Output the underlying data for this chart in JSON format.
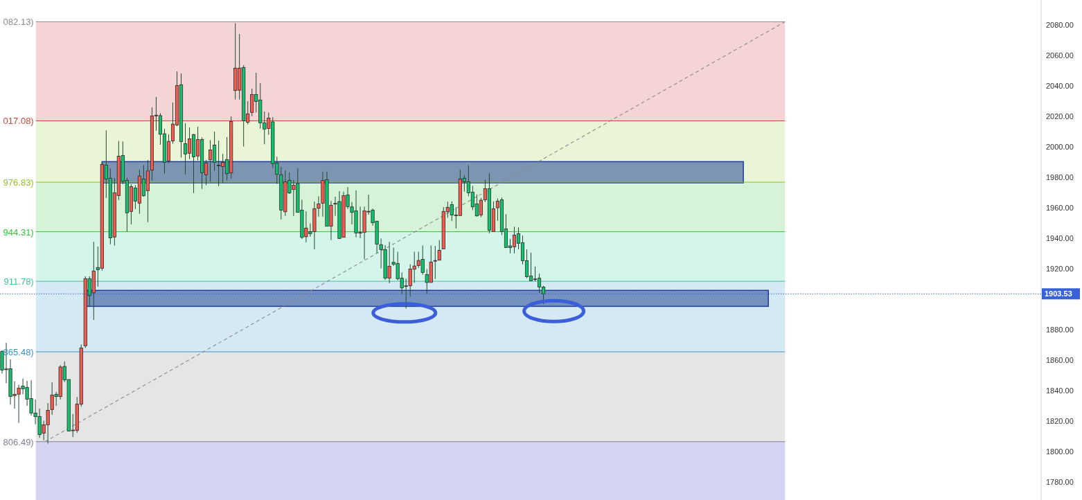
{
  "chart_data": {
    "type": "candlestick",
    "categories": [
      null,
      null,
      null,
      null,
      null,
      null,
      null,
      null,
      null,
      null,
      null,
      null,
      null,
      null,
      null,
      null,
      null,
      null,
      null,
      null,
      null,
      null,
      null,
      null,
      null,
      null,
      null,
      null,
      null,
      null,
      null,
      null,
      null,
      null,
      null,
      null,
      null,
      null,
      null,
      null,
      null,
      null,
      null,
      null,
      null,
      null,
      null,
      null,
      null,
      null,
      null,
      null,
      null,
      null,
      null,
      null,
      null,
      null,
      null,
      null,
      null,
      null,
      null,
      null,
      null,
      null,
      null,
      null,
      null,
      null,
      null,
      null,
      null,
      null,
      null,
      null,
      null,
      null,
      null,
      null,
      null,
      null,
      null,
      null,
      null,
      null,
      null,
      null,
      null,
      null,
      null,
      null,
      null,
      null,
      null,
      null,
      null,
      null,
      null,
      null,
      null,
      null,
      null,
      null,
      null,
      null,
      null,
      null,
      null,
      null,
      null,
      null,
      null,
      null,
      null,
      null,
      null,
      null,
      null,
      null,
      null,
      null,
      null,
      null,
      null,
      null,
      null,
      null,
      null,
      null,
      null,
      null,
      null,
      null,
      null,
      null,
      null,
      null,
      null,
      null,
      null,
      null,
      null,
      null,
      null,
      null,
      null,
      null,
      null,
      null,
      null,
      null,
      null,
      null,
      null,
      null,
      null,
      null,
      null,
      null,
      null,
      null,
      null,
      null,
      null,
      null,
      null,
      null,
      null,
      null,
      null,
      null,
      null,
      null,
      null,
      null,
      null,
      null,
      null,
      null,
      null,
      null,
      null,
      null,
      null,
      null,
      null,
      null,
      null,
      null,
      null,
      null,
      null,
      null,
      null,
      null,
      null,
      null,
      null,
      null,
      null,
      null,
      null,
      null,
      null,
      null,
      null,
      null,
      null,
      null,
      null,
      null,
      null,
      null,
      null,
      null,
      null,
      null,
      null,
      null,
      null,
      null,
      null,
      null,
      null,
      null,
      null,
      null,
      null,
      null,
      null,
      null,
      null,
      null,
      null,
      null,
      null,
      null,
      null,
      null,
      null,
      null,
      null,
      null,
      null,
      null,
      null,
      null,
      null,
      null
    ],
    "ohlc": [
      [
        1865.8,
        1866.5,
        1851.2,
        1853.5
      ],
      [
        1854.2,
        1871.4,
        1844.8,
        1854.2
      ],
      [
        1854.4,
        1860.5,
        1830.8,
        1836.2
      ],
      [
        1836.7,
        1846.1,
        1828.2,
        1837.6
      ],
      [
        1837.6,
        1843.8,
        1818.8,
        1841.7
      ],
      [
        1843.0,
        1847.9,
        1837.6,
        1841.2
      ],
      [
        1842.1,
        1846.4,
        1830.0,
        1834.4
      ],
      [
        1834.8,
        1846.8,
        1823.6,
        1825.3
      ],
      [
        1825.3,
        1834.2,
        1817.9,
        1822.9
      ],
      [
        1823.0,
        1828.2,
        1809.0,
        1811.1
      ],
      [
        1812.0,
        1820.3,
        1807.4,
        1817.6
      ],
      [
        1817.6,
        1831.8,
        1805.2,
        1827.1
      ],
      [
        1827.6,
        1845.5,
        1824.1,
        1837.1
      ],
      [
        1837.6,
        1839.2,
        1830.0,
        1836.1
      ],
      [
        1836.1,
        1856.7,
        1834.2,
        1855.5
      ],
      [
        1855.9,
        1859.1,
        1845.6,
        1847.1
      ],
      [
        1847.3,
        1847.3,
        1813.3,
        1813.5
      ],
      [
        1814.1,
        1824.7,
        1809.5,
        1814.1
      ],
      [
        1813.8,
        1835.8,
        1812.3,
        1831.2
      ],
      [
        1831.1,
        1870.3,
        1829.5,
        1868.0
      ],
      [
        1869.4,
        1915.0,
        1868.0,
        1913.5
      ],
      [
        1913.5,
        1915.0,
        1895.6,
        1902.4
      ],
      [
        1904.2,
        1937.7,
        1886.4,
        1918.5
      ],
      [
        1920.8,
        1934.5,
        1908.2,
        1919.4
      ],
      [
        1920.3,
        1990.3,
        1918.8,
        1988.5
      ],
      [
        1988.0,
        2010.8,
        1966.5,
        1978.9
      ],
      [
        1979.4,
        1985.8,
        1936.1,
        1940.3
      ],
      [
        1940.8,
        1979.4,
        1935.2,
        1969.9
      ],
      [
        1968.0,
        2003.9,
        1965.1,
        1993.9
      ],
      [
        1994.4,
        2003.5,
        1975.5,
        1977.4
      ],
      [
        1978.0,
        1979.7,
        1944.4,
        1956.7
      ],
      [
        1957.6,
        1975.5,
        1949.2,
        1973.9
      ],
      [
        1973.0,
        1974.9,
        1959.2,
        1964.4
      ],
      [
        1963.0,
        1985.0,
        1956.1,
        1980.8
      ],
      [
        1978.9,
        1988.0,
        1967.3,
        1967.9
      ],
      [
        1971.2,
        1991.4,
        1950.6,
        1984.2
      ],
      [
        1984.7,
        2025.9,
        1977.9,
        2020.3
      ],
      [
        2020.8,
        2032.7,
        2010.6,
        2020.8
      ],
      [
        2020.5,
        2022.1,
        2001.4,
        2008.3
      ],
      [
        2008.6,
        2011.8,
        1982.4,
        1989.8
      ],
      [
        1990.8,
        2008.2,
        1989.2,
        2003.6
      ],
      [
        2003.9,
        2029.1,
        2002.1,
        2015.0
      ],
      [
        2014.4,
        2049.5,
        2013.5,
        2040.3
      ],
      [
        2040.7,
        2048.2,
        1993.0,
        2003.5
      ],
      [
        2002.1,
        2015.5,
        1982.0,
        1995.3
      ],
      [
        1995.8,
        2012.7,
        1992.0,
        2005.3
      ],
      [
        2008.0,
        2008.5,
        1969.7,
        1993.5
      ],
      [
        1994.0,
        2013.2,
        1991.1,
        2004.8
      ],
      [
        2004.8,
        2006.2,
        1972.4,
        1983.0
      ],
      [
        1981.7,
        1991.4,
        1974.8,
        1989.4
      ],
      [
        1991.5,
        2004.4,
        1977.1,
        1998.0
      ],
      [
        2001.2,
        2010.0,
        1984.2,
        1989.8
      ],
      [
        1988.0,
        2004.1,
        1974.2,
        1988.0
      ],
      [
        1987.0,
        1995.4,
        1976.4,
        1989.8
      ],
      [
        1991.7,
        2006.4,
        1977.9,
        1982.4
      ],
      [
        1982.9,
        2020.0,
        1979.1,
        2016.7
      ],
      [
        2037.0,
        2081.2,
        2031.1,
        2051.7
      ],
      [
        2037.2,
        2074.1,
        2031.1,
        2051.7
      ],
      [
        2052.1,
        2053.6,
        2000.2,
        2017.1
      ],
      [
        2016.2,
        2030.0,
        2014.7,
        2021.7
      ],
      [
        2022.6,
        2038.2,
        2020.1,
        2034.4
      ],
      [
        2034.4,
        2048.6,
        2022.6,
        2029.8
      ],
      [
        2030.8,
        2041.8,
        2012.0,
        2015.8
      ],
      [
        2015.8,
        2023.2,
        2001.7,
        2011.7
      ],
      [
        2012.1,
        2022.6,
        2007.9,
        2018.9
      ],
      [
        2016.4,
        2019.5,
        1986.2,
        1989.0
      ],
      [
        1989.4,
        1993.6,
        1975.7,
        1982.1
      ],
      [
        1981.7,
        1986.8,
        1952.4,
        1958.5
      ],
      [
        1957.4,
        1984.5,
        1954.7,
        1977.1
      ],
      [
        1978.0,
        1983.2,
        1969.1,
        1969.7
      ],
      [
        1972.0,
        1978.2,
        1954.7,
        1974.8
      ],
      [
        1975.9,
        1985.8,
        1957.0,
        1957.0
      ],
      [
        1958.5,
        1965.3,
        1939.5,
        1940.6
      ],
      [
        1941.0,
        1957.7,
        1937.3,
        1946.7
      ],
      [
        1944.4,
        1949.8,
        1941.0,
        1943.0
      ],
      [
        1944.4,
        1964.1,
        1932.7,
        1959.4
      ],
      [
        1959.7,
        1967.6,
        1954.2,
        1962.6
      ],
      [
        1963.0,
        1983.5,
        1954.2,
        1978.0
      ],
      [
        1978.5,
        1983.9,
        1947.9,
        1947.9
      ],
      [
        1947.9,
        1964.5,
        1938.8,
        1961.7
      ],
      [
        1962.9,
        1967.3,
        1954.7,
        1962.9
      ],
      [
        1964.1,
        1970.9,
        1939.8,
        1939.8
      ],
      [
        1940.6,
        1970.6,
        1940.6,
        1968.0
      ],
      [
        1968.5,
        1973.6,
        1959.2,
        1960.8
      ],
      [
        1960.6,
        1963.8,
        1949.1,
        1957.0
      ],
      [
        1958.0,
        1971.4,
        1940.6,
        1943.5
      ],
      [
        1943.8,
        1960.8,
        1940.0,
        1943.8
      ],
      [
        1943.8,
        1960.8,
        1926.2,
        1958.0
      ],
      [
        1957.7,
        1968.6,
        1955.5,
        1957.7
      ],
      [
        1958.5,
        1959.5,
        1948.3,
        1950.2
      ],
      [
        1951.2,
        1951.2,
        1930.2,
        1936.1
      ],
      [
        1935.8,
        1939.8,
        1920.2,
        1932.6
      ],
      [
        1932.6,
        1935.5,
        1912.7,
        1913.8
      ],
      [
        1913.8,
        1937.7,
        1910.5,
        1921.7
      ],
      [
        1924.2,
        1933.9,
        1921.8,
        1922.9
      ],
      [
        1923.5,
        1931.2,
        1912.3,
        1913.5
      ],
      [
        1913.8,
        1917.6,
        1903.5,
        1907.4
      ],
      [
        1908.8,
        1913.5,
        1893.8,
        1908.8
      ],
      [
        1908.8,
        1922.9,
        1901.7,
        1919.8
      ],
      [
        1919.7,
        1931.2,
        1910.8,
        1921.8
      ],
      [
        1922.1,
        1931.2,
        1920.6,
        1925.4
      ],
      [
        1926.2,
        1935.3,
        1916.1,
        1917.6
      ],
      [
        1916.2,
        1919.8,
        1903.5,
        1911.0
      ],
      [
        1911.0,
        1935.3,
        1910.8,
        1924.4
      ],
      [
        1925.4,
        1935.0,
        1913.3,
        1925.4
      ],
      [
        1925.6,
        1938.8,
        1925.6,
        1932.1
      ],
      [
        1933.0,
        1960.5,
        1933.0,
        1957.6
      ],
      [
        1957.4,
        1964.1,
        1953.5,
        1960.3
      ],
      [
        1962.1,
        1964.2,
        1951.4,
        1955.3
      ],
      [
        1955.2,
        1960.5,
        1946.4,
        1955.2
      ],
      [
        1954.9,
        1985.0,
        1954.9,
        1978.9
      ],
      [
        1979.4,
        1981.5,
        1970.6,
        1977.1
      ],
      [
        1977.1,
        1988.0,
        1967.6,
        1969.8
      ],
      [
        1970.3,
        1974.4,
        1958.5,
        1960.6
      ],
      [
        1962.6,
        1968.8,
        1954.2,
        1954.7
      ],
      [
        1955.3,
        1966.5,
        1953.8,
        1965.0
      ],
      [
        1965.2,
        1978.5,
        1963.8,
        1972.6
      ],
      [
        1972.6,
        1982.7,
        1943.3,
        1945.3
      ],
      [
        1944.4,
        1964.1,
        1944.4,
        1959.4
      ],
      [
        1960.0,
        1966.1,
        1951.5,
        1964.4
      ],
      [
        1965.3,
        1966.8,
        1942.1,
        1944.4
      ],
      [
        1946.2,
        1955.8,
        1933.9,
        1933.9
      ],
      [
        1935.0,
        1939.5,
        1930.1,
        1933.9
      ],
      [
        1934.4,
        1947.6,
        1930.1,
        1942.1
      ],
      [
        1943.0,
        1947.1,
        1932.7,
        1936.7
      ],
      [
        1937.1,
        1941.8,
        1922.9,
        1925.3
      ],
      [
        1925.3,
        1932.7,
        1913.8,
        1914.8
      ],
      [
        1915.3,
        1930.5,
        1912.1,
        1912.1
      ],
      [
        1913.3,
        1921.4,
        1911.8,
        1913.3
      ],
      [
        1913.8,
        1916.8,
        1904.2,
        1908.0
      ],
      [
        1908.0,
        1908.8,
        1896.8,
        1903.53
      ],
      null,
      null,
      null,
      null,
      null,
      null,
      null,
      null,
      null,
      null,
      null,
      null,
      null,
      null,
      null,
      null,
      null,
      null,
      null,
      null,
      null,
      null,
      null,
      null,
      null,
      null,
      null,
      null,
      null,
      null,
      null,
      null,
      null,
      null,
      null,
      null,
      null,
      null,
      null,
      null,
      null,
      null,
      null,
      null,
      null,
      null,
      null,
      null,
      null,
      null,
      null,
      null,
      null,
      null,
      null,
      null,
      null,
      null,
      null,
      null,
      null,
      null,
      null,
      null,
      null,
      null,
      null,
      null,
      null,
      null,
      null,
      null,
      null,
      null,
      null,
      null,
      null,
      null,
      null,
      null,
      null,
      null,
      null,
      null,
      null,
      null,
      null,
      null,
      null,
      null,
      null,
      null,
      null,
      null,
      null,
      null,
      null,
      null,
      null,
      null,
      null,
      null,
      null,
      null,
      null,
      null,
      null,
      null,
      null,
      null,
      null,
      null,
      null,
      null,
      null,
      null,
      null,
      null,
      null
    ],
    "colors": [
      "#10c36c",
      "#f55a4e",
      "#10c36c",
      "#f55a4e",
      "#f55a4e",
      "#10c36c",
      "#10c36c",
      "#10c36c",
      "#10c36c",
      "#10c36c",
      "#f55a4e",
      "#f55a4e",
      "#f55a4e",
      "#10c36c",
      "#f55a4e",
      "#10c36c",
      "#10c36c",
      "#f55a4e",
      "#f55a4e",
      "#f55a4e",
      "#f55a4e",
      "#10c36c",
      "#f55a4e",
      "#10c36c",
      "#f55a4e",
      "#10c36c",
      "#10c36c",
      "#f55a4e",
      "#f55a4e",
      "#10c36c",
      "#10c36c",
      "#f55a4e",
      "#10c36c",
      "#f55a4e",
      "#10c36c",
      "#f55a4e",
      "#f55a4e",
      "#f55a4e",
      "#10c36c",
      "#10c36c",
      "#f55a4e",
      "#f55a4e",
      "#f55a4e",
      "#10c36c",
      "#10c36c",
      "#f55a4e",
      "#10c36c",
      "#f55a4e",
      "#10c36c",
      "#f55a4e",
      "#f55a4e",
      "#10c36c",
      "#f55a4e",
      "#f55a4e",
      "#10c36c",
      "#f55a4e",
      "#f55a4e",
      "#f55a4e",
      "#10c36c",
      "#f55a4e",
      "#f55a4e",
      "#10c36c",
      "#10c36c",
      "#10c36c",
      "#f55a4e",
      "#10c36c",
      "#10c36c",
      "#10c36c",
      "#f55a4e",
      "#10c36c",
      "#f55a4e",
      "#10c36c",
      "#10c36c",
      "#f55a4e",
      "#10c36c",
      "#f55a4e",
      "#f55a4e",
      "#f55a4e",
      "#10c36c",
      "#f55a4e",
      "#f55a4e",
      "#10c36c",
      "#f55a4e",
      "#10c36c",
      "#10c36c",
      "#10c36c",
      "#f55a4e",
      "#f55a4e",
      "#f55a4e",
      "#10c36c",
      "#10c36c",
      "#10c36c",
      "#10c36c",
      "#f55a4e",
      "#10c36c",
      "#10c36c",
      "#10c36c",
      "#f55a4e",
      "#f55a4e",
      "#f55a4e",
      "#f55a4e",
      "#10c36c",
      "#10c36c",
      "#f55a4e",
      "#f55a4e",
      "#f55a4e",
      "#f55a4e",
      "#f55a4e",
      "#10c36c",
      "#f55a4e",
      "#f55a4e",
      "#10c36c",
      "#10c36c",
      "#10c36c",
      "#10c36c",
      "#f55a4e",
      "#f55a4e",
      "#10c36c",
      "#f55a4e",
      "#f55a4e",
      "#10c36c",
      "#10c36c",
      "#10c36c",
      "#f55a4e",
      "#10c36c",
      "#10c36c",
      "#10c36c",
      "#10c36c",
      "#f55a4e",
      "#10c36c",
      "#10c36c",
      null,
      null,
      null,
      null,
      null,
      null,
      null,
      null,
      null,
      null,
      null,
      null,
      null,
      null,
      null,
      null,
      null,
      null,
      null,
      null,
      null,
      null,
      null,
      null,
      null,
      null,
      null,
      null,
      null,
      null,
      null,
      null,
      null,
      null,
      null,
      null,
      null,
      null,
      null,
      null,
      null,
      null,
      null,
      null,
      null,
      null,
      null,
      null,
      null,
      null,
      null,
      null,
      null,
      null,
      null,
      null,
      null,
      null,
      null,
      null,
      null,
      null,
      null,
      null,
      null,
      null,
      null,
      null,
      null,
      null,
      null,
      null,
      null,
      null,
      null,
      null,
      null,
      null,
      null,
      null,
      null,
      null,
      null,
      null,
      null,
      null,
      null,
      null,
      null,
      null,
      null,
      null,
      null,
      null,
      null,
      null,
      null,
      null,
      null,
      null,
      null,
      null,
      null,
      null,
      null,
      null,
      null,
      null,
      null,
      null,
      null,
      null,
      null,
      null,
      null,
      null,
      null,
      null,
      null
    ],
    "ylim": [
      1768.2,
      2096.4
    ],
    "yticks": [
      {
        "value": 1780,
        "label": "1780.00"
      },
      {
        "value": 1800,
        "label": "1800.00"
      },
      {
        "value": 1820,
        "label": "1820.00"
      },
      {
        "value": 1840,
        "label": "1840.00"
      },
      {
        "value": 1860,
        "label": "1860.00"
      },
      {
        "value": 1880,
        "label": "1880.00"
      },
      {
        "value": 1920,
        "label": "1920.00"
      },
      {
        "value": 1940,
        "label": "1940.00"
      },
      {
        "value": 1960,
        "label": "1960.00"
      },
      {
        "value": 1980,
        "label": "1980.00"
      },
      {
        "value": 2000,
        "label": "2000.00"
      },
      {
        "value": 2020,
        "label": "2020.00"
      },
      {
        "value": 2040,
        "label": "2040.00"
      },
      {
        "value": 2060,
        "label": "2060.00"
      },
      {
        "value": 2080,
        "label": "2080.00"
      }
    ],
    "tick_labels": "y",
    "annotations": [
      "082.13)",
      "017.08)",
      "976.83)",
      "944.31)",
      "911.78)",
      "865.48)",
      "806.49)"
    ],
    "ref_lines": [
      {
        "axis": "y",
        "value": 2082.13,
        "color": "#8c8c8c"
      },
      {
        "axis": "y",
        "value": 2017.08,
        "color": "#d0453a"
      },
      {
        "axis": "y",
        "value": 1976.83,
        "color": "#94c420"
      },
      {
        "axis": "y",
        "value": 1944.31,
        "color": "#2fc43a"
      },
      {
        "axis": "y",
        "value": 1911.78,
        "color": "#3cc49a"
      },
      {
        "axis": "y",
        "value": 1865.48,
        "color": "#3a94c8"
      },
      {
        "axis": "y",
        "value": 1806.49,
        "color": "#808098"
      },
      {
        "axis": "y",
        "value": 1903.53,
        "label": "1903.53",
        "color": "#3a62d8",
        "line_style": "dotted"
      }
    ],
    "bands": [
      {
        "axis": "y",
        "from": 2017.08,
        "to": 2082.13,
        "color": "#f4d4d4"
      },
      {
        "axis": "y",
        "from": 1976.83,
        "to": 2017.08,
        "color": "#eaf4d6"
      },
      {
        "axis": "y",
        "from": 1944.31,
        "to": 1976.83,
        "color": "#d6f3d8"
      },
      {
        "axis": "y",
        "from": 1911.78,
        "to": 1944.31,
        "color": "#d5f5ea"
      },
      {
        "axis": "y",
        "from": 1865.48,
        "to": 1911.78,
        "color": "#d4e9f4"
      },
      {
        "axis": "y",
        "from": 1806.49,
        "to": 1865.48,
        "color": "#e5e5e5"
      },
      {
        "axis": "y",
        "from": 1768.2,
        "to": 1806.49,
        "color": "#d4d4f2"
      },
      {
        "axis": "y",
        "from": 1976.4,
        "to": 1990.3,
        "color": "#3a5a9e"
      },
      {
        "axis": "y",
        "from": 1895.3,
        "to": 1905.8,
        "color": "#3a5a9e"
      }
    ]
  }
}
